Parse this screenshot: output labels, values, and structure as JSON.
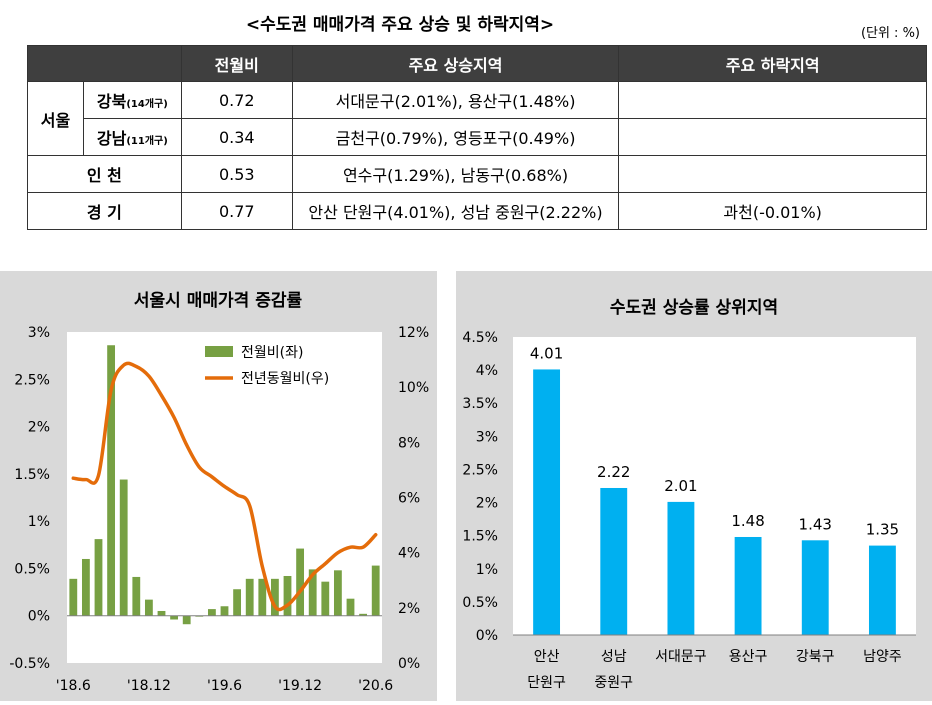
{
  "table": {
    "title": "<수도권 매매가격 주요 상승 및 하락지역>",
    "unit": "(단위 : %)",
    "headers": [
      "",
      "전월비",
      "주요 상승지역",
      "주요 하락지역"
    ],
    "seoul_label": "서울",
    "rows": [
      {
        "region": "강북",
        "sub": "(14개구)",
        "mom": "0.72",
        "rising": "서대문구(2.01%), 용산구(1.48%)",
        "falling": ""
      },
      {
        "region": "강남",
        "sub": "(11개구)",
        "mom": "0.34",
        "rising": "금천구(0.79%), 영등포구(0.49%)",
        "falling": ""
      },
      {
        "region": "인  천",
        "sub": "",
        "mom": "0.53",
        "rising": "연수구(1.29%), 남동구(0.68%)",
        "falling": ""
      },
      {
        "region": "경  기",
        "sub": "",
        "mom": "0.77",
        "rising": "안산 단원구(4.01%), 성남 중원구(2.22%)",
        "falling": "과천(-0.01%)"
      }
    ]
  },
  "chart_data": [
    {
      "type": "bar+line",
      "title": "서울시 매매가격 증감률",
      "x_tick_labels": [
        "'18.6",
        "'18.12",
        "'19.6",
        "'19.12",
        "'20.6"
      ],
      "x_tick_index": [
        0,
        6,
        12,
        18,
        24
      ],
      "left_axis": {
        "ylim": [
          -0.5,
          3
        ],
        "ticks": [
          -0.5,
          0,
          0.5,
          1,
          1.5,
          2,
          2.5,
          3
        ],
        "tick_labels": [
          "-0.5%",
          "0%",
          "0.5%",
          "1%",
          "1.5%",
          "2%",
          "2.5%",
          "3%"
        ]
      },
      "right_axis": {
        "ylim": [
          0,
          12
        ],
        "ticks": [
          0,
          2,
          4,
          6,
          8,
          10,
          12
        ],
        "tick_labels": [
          "0%",
          "2%",
          "4%",
          "6%",
          "8%",
          "10%",
          "12%"
        ]
      },
      "series": [
        {
          "name": "전월비(좌)",
          "kind": "bar",
          "color": "#77a043",
          "axis": "left",
          "values": [
            0.39,
            0.6,
            0.81,
            2.86,
            1.44,
            0.41,
            0.17,
            0.05,
            -0.04,
            -0.09,
            -0.01,
            0.07,
            0.1,
            0.28,
            0.39,
            0.39,
            0.39,
            0.42,
            0.71,
            0.49,
            0.36,
            0.48,
            0.18,
            0.02,
            0.53
          ]
        },
        {
          "name": "전년동월비(우)",
          "kind": "line",
          "color": "#e46c0a",
          "axis": "right",
          "values": [
            6.7,
            6.65,
            6.8,
            9.9,
            10.8,
            10.75,
            10.4,
            9.7,
            8.9,
            7.9,
            7.1,
            6.75,
            6.4,
            6.1,
            5.7,
            3.5,
            2.05,
            2.1,
            2.6,
            3.2,
            3.6,
            4.0,
            4.2,
            4.2,
            4.65
          ]
        }
      ]
    },
    {
      "type": "bar",
      "title": "수도권 상승률 상위지역",
      "categories": [
        [
          "안산",
          "단원구"
        ],
        [
          "성남",
          "중원구"
        ],
        [
          "서대문구"
        ],
        [
          "용산구"
        ],
        [
          "강북구"
        ],
        [
          "남양주"
        ]
      ],
      "values": [
        4.01,
        2.22,
        2.01,
        1.48,
        1.43,
        1.35
      ],
      "value_labels": [
        "4.01",
        "2.22",
        "2.01",
        "1.48",
        "1.43",
        "1.35"
      ],
      "ylim": [
        0,
        4.5
      ],
      "tick_labels": [
        "0%",
        "0.5%",
        "1%",
        "1.5%",
        "2%",
        "2.5%",
        "3%",
        "3.5%",
        "4%",
        "4.5%"
      ],
      "color": "#00b0f0"
    }
  ]
}
